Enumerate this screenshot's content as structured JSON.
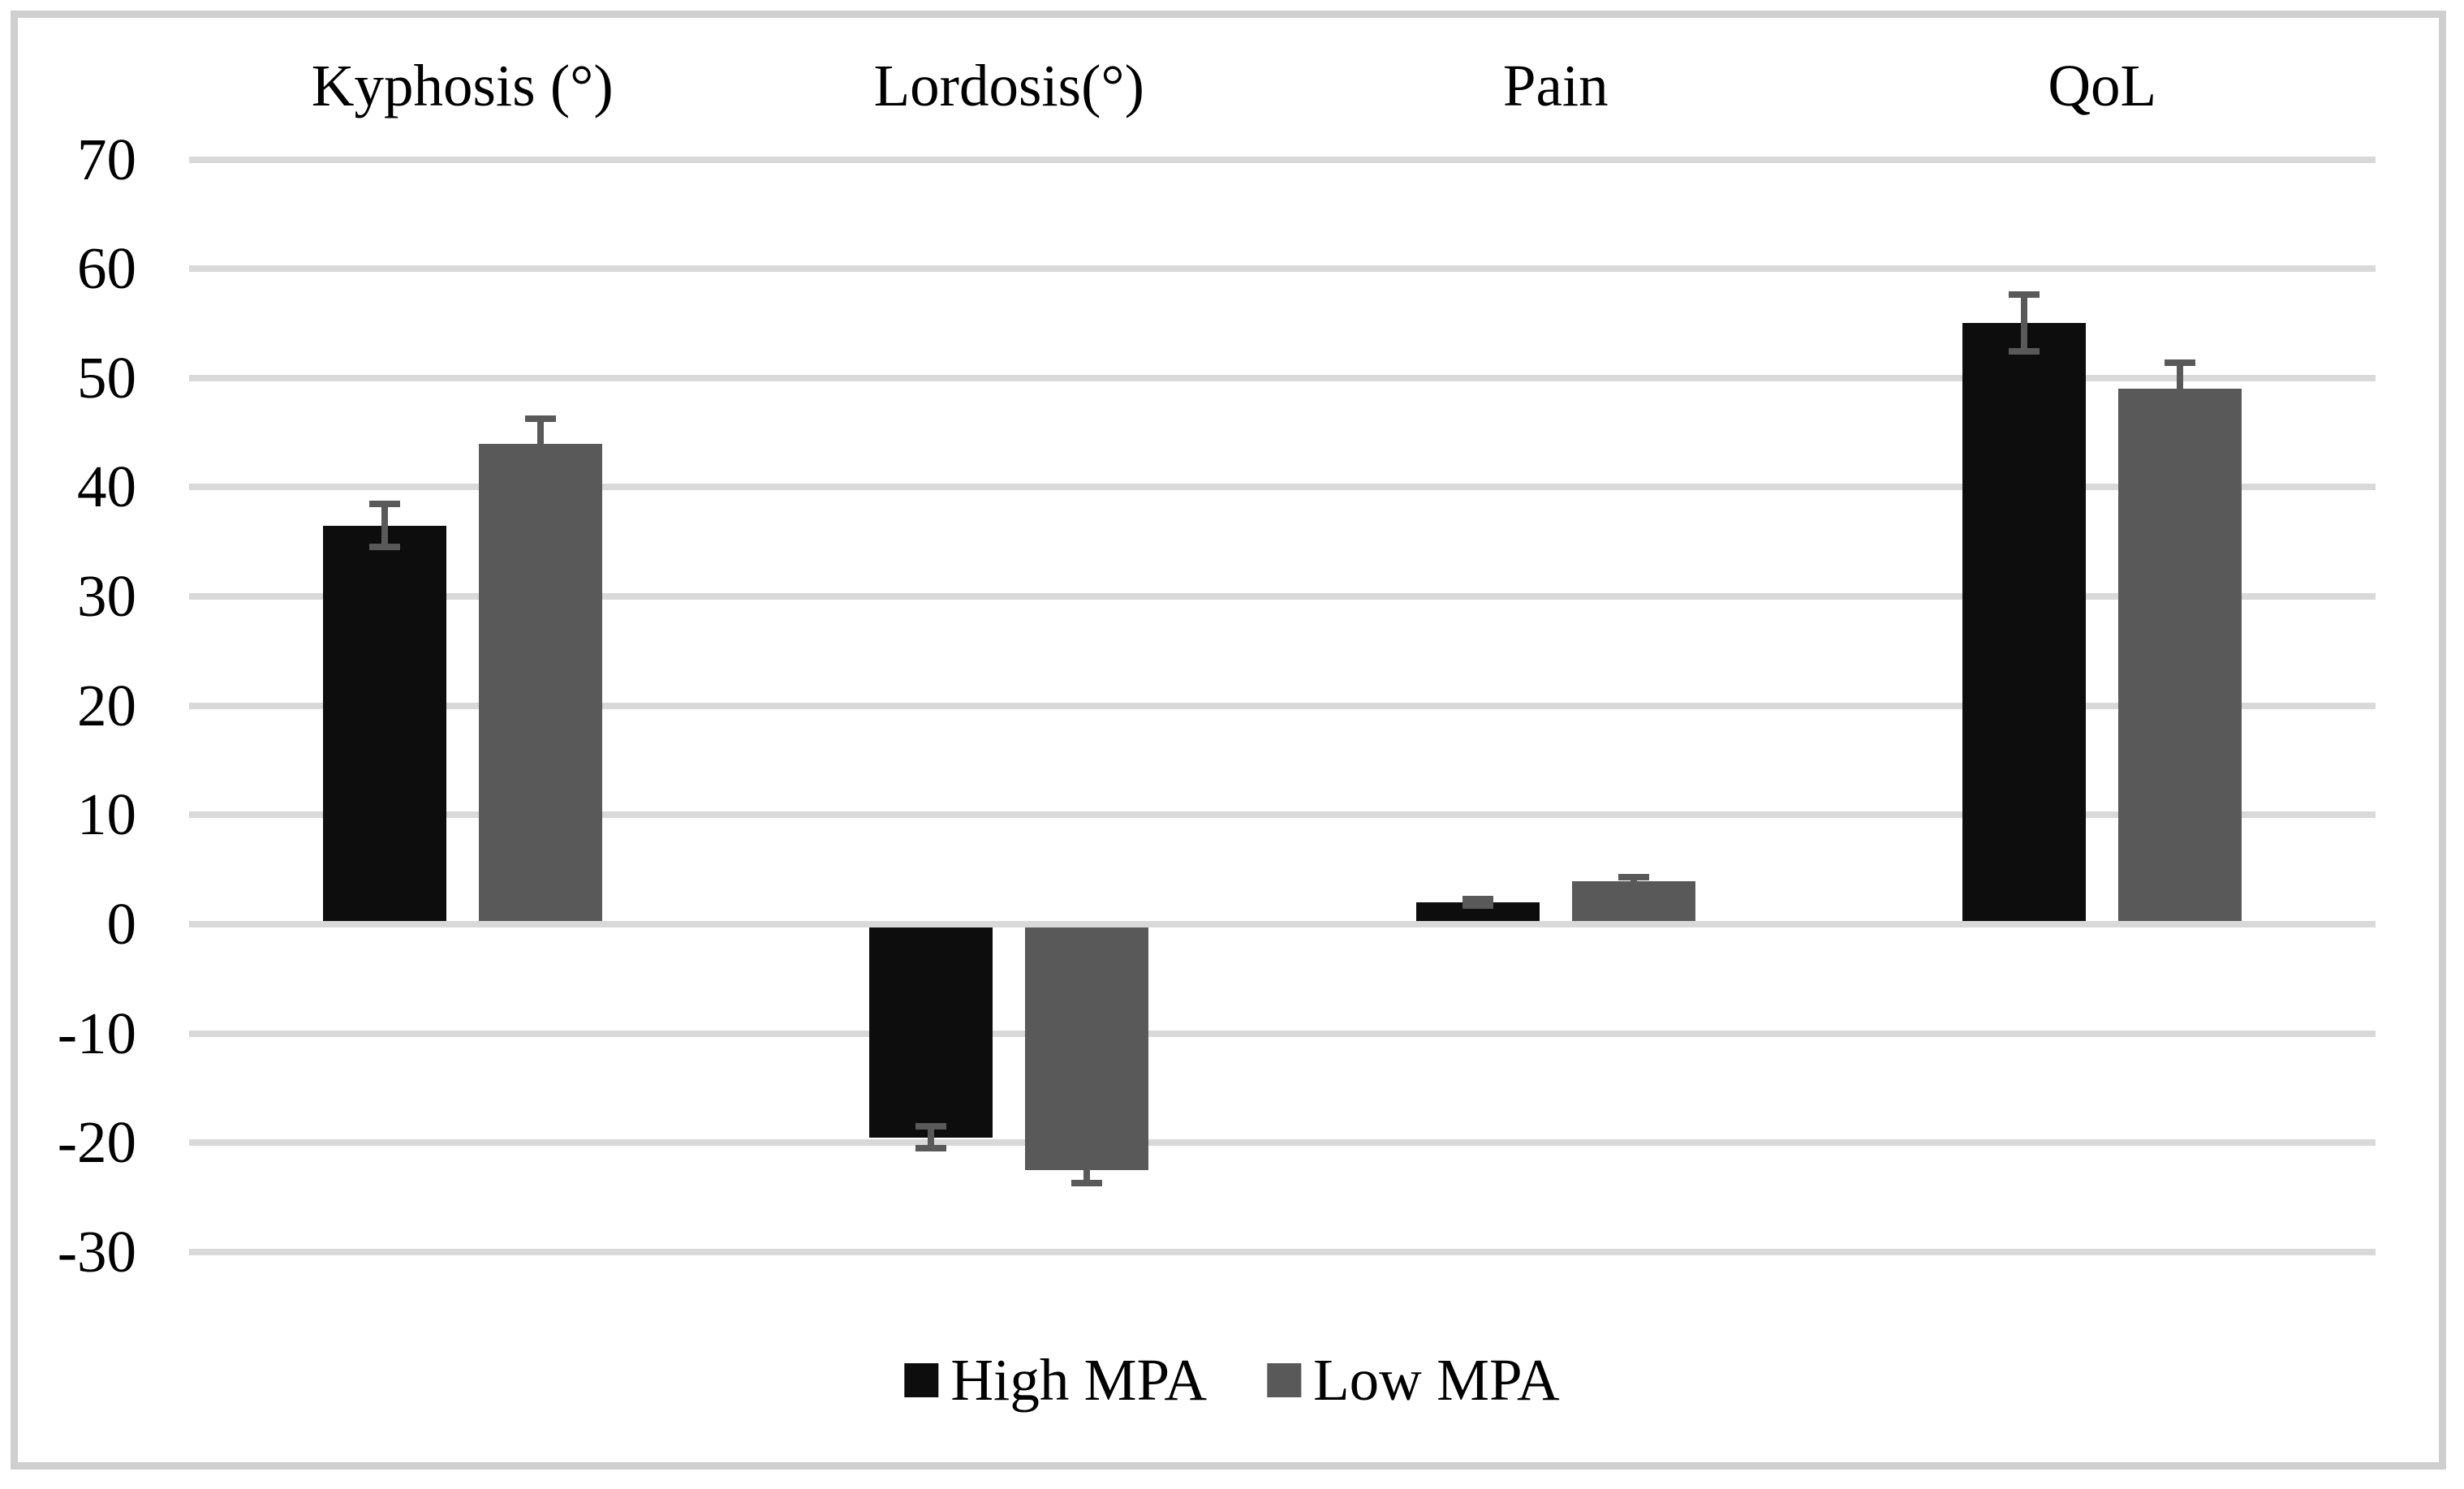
{
  "figure": {
    "background": "#ffffff",
    "border_color": "#cfcfcf"
  },
  "chart_data": {
    "type": "bar",
    "title": "",
    "xlabel": "",
    "ylabel": "",
    "categories": [
      "Kyphosis (°)",
      "Lordosis(°)",
      "Pain",
      "QoL"
    ],
    "series": [
      {
        "name": "High MPA",
        "color": "#0d0d0d",
        "values": [
          36.5,
          -19.5,
          2,
          55
        ],
        "errors": [
          2,
          1,
          0.3,
          2.6
        ]
      },
      {
        "name": "Low MPA",
        "color": "#595959",
        "values": [
          44,
          -22.5,
          3.9,
          49
        ],
        "errors": [
          2.3,
          1.2,
          0.4,
          2.4
        ]
      }
    ],
    "ylim": [
      -30,
      70
    ],
    "ytick_interval": 10,
    "yticks": [
      70,
      60,
      50,
      40,
      30,
      20,
      10,
      0,
      -10,
      -20,
      -30
    ],
    "grid": true,
    "gridline_color": "#d9d9d9",
    "error_bar_color": "#595959",
    "legend_position": "bottom"
  }
}
